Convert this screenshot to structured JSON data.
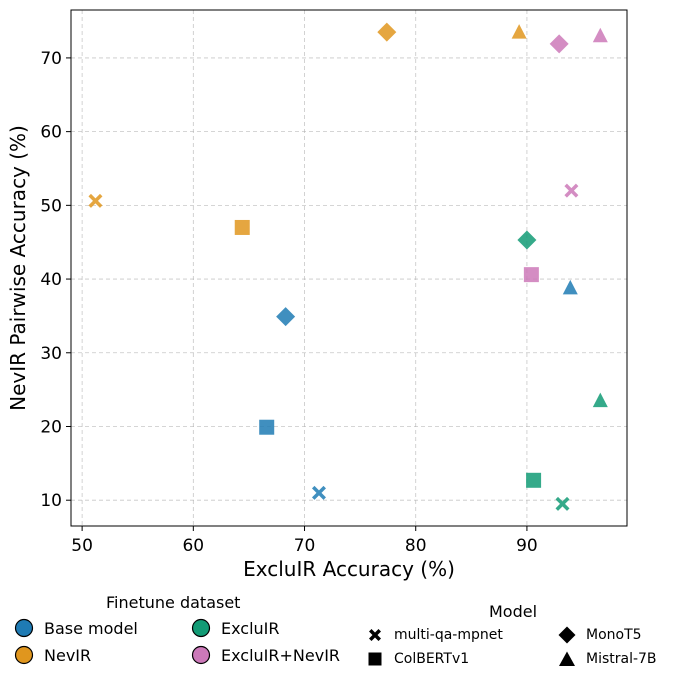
{
  "chart_data": {
    "type": "scatter",
    "xlabel": "ExcluIR Accuracy (%)",
    "ylabel": "NevIR Pairwise Accuracy (%)",
    "xlim": [
      49,
      99
    ],
    "ylim": [
      6.5,
      76.5
    ],
    "xticks": [
      "50",
      "60",
      "70",
      "80",
      "90"
    ],
    "xtick_values": [
      50,
      60,
      70,
      80,
      90
    ],
    "yticks": [
      "10",
      "20",
      "30",
      "40",
      "50",
      "60",
      "70"
    ],
    "ytick_values": [
      10,
      20,
      30,
      40,
      50,
      60,
      70
    ],
    "grid": true,
    "points": [
      {
        "dataset": "Base model",
        "model": "multi-qa-mpnet",
        "x": 71.3,
        "y": 11.0
      },
      {
        "dataset": "Base model",
        "model": "ColBERTv1",
        "x": 66.6,
        "y": 19.9
      },
      {
        "dataset": "Base model",
        "model": "MonoT5",
        "x": 68.3,
        "y": 34.9
      },
      {
        "dataset": "Base model",
        "model": "Mistral-7B",
        "x": 93.9,
        "y": 38.8
      },
      {
        "dataset": "NevIR",
        "model": "multi-qa-mpnet",
        "x": 51.2,
        "y": 50.6
      },
      {
        "dataset": "NevIR",
        "model": "ColBERTv1",
        "x": 64.4,
        "y": 47.0
      },
      {
        "dataset": "NevIR",
        "model": "MonoT5",
        "x": 77.4,
        "y": 73.5
      },
      {
        "dataset": "NevIR",
        "model": "Mistral-7B",
        "x": 89.3,
        "y": 73.5
      },
      {
        "dataset": "ExcluIR",
        "model": "multi-qa-mpnet",
        "x": 93.2,
        "y": 9.5
      },
      {
        "dataset": "ExcluIR",
        "model": "ColBERTv1",
        "x": 90.6,
        "y": 12.7
      },
      {
        "dataset": "ExcluIR",
        "model": "MonoT5",
        "x": 90.0,
        "y": 45.3
      },
      {
        "dataset": "ExcluIR",
        "model": "Mistral-7B",
        "x": 96.6,
        "y": 23.5
      },
      {
        "dataset": "ExcluIR+NevIR",
        "model": "multi-qa-mpnet",
        "x": 94.0,
        "y": 52.0
      },
      {
        "dataset": "ExcluIR+NevIR",
        "model": "ColBERTv1",
        "x": 90.4,
        "y": 40.6
      },
      {
        "dataset": "ExcluIR+NevIR",
        "model": "MonoT5",
        "x": 92.9,
        "y": 71.9
      },
      {
        "dataset": "ExcluIR+NevIR",
        "model": "Mistral-7B",
        "x": 96.6,
        "y": 73.0
      }
    ],
    "legend_datasets": {
      "title": "Finetune dataset",
      "placement": "below-left",
      "entries": [
        {
          "label": "Base model",
          "color": "#1f7bb4"
        },
        {
          "label": "NevIR",
          "color": "#e0961e"
        },
        {
          "label": "ExcluIR",
          "color": "#129b75"
        },
        {
          "label": "ExcluIR+NevIR",
          "color": "#cc79b9"
        }
      ]
    },
    "legend_models": {
      "title": "Model",
      "placement": "below-right",
      "entries": [
        {
          "label": "multi-qa-mpnet",
          "marker": "x-icon"
        },
        {
          "label": "ColBERTv1",
          "marker": "square-icon"
        },
        {
          "label": "MonoT5",
          "marker": "diamond-icon"
        },
        {
          "label": "Mistral-7B",
          "marker": "triangle-icon"
        }
      ]
    }
  }
}
